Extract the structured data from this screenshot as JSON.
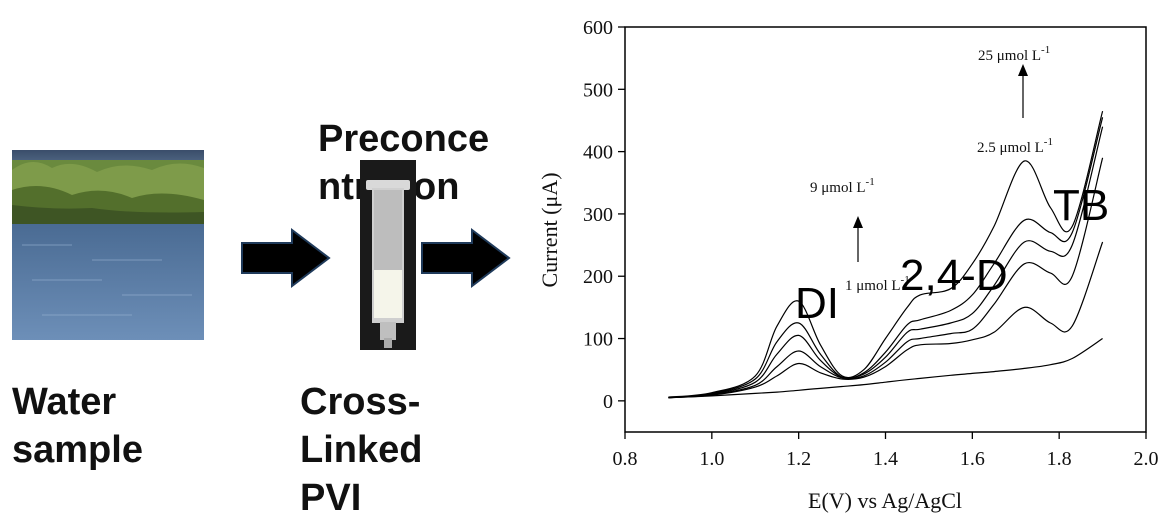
{
  "labels": {
    "water_sample": [
      "Water",
      "sample"
    ],
    "preconcentration": [
      "Preconce",
      "ntration"
    ],
    "cross_linked": [
      "Cross-",
      "Linked",
      "PVI"
    ]
  },
  "icons": {
    "photo": "water-landscape-photo",
    "cartridge": "spe-cartridge",
    "arrow": "right-arrow"
  },
  "colors": {
    "arrow_fill": "#000000",
    "arrow_border": "#1f3a5a",
    "curve": "#000000"
  },
  "chart_data": {
    "type": "line",
    "xlabel": "E(V) vs Ag/AgCl",
    "ylabel": "Current (μA)",
    "xlim": [
      0.8,
      2.0
    ],
    "ylim": [
      -50,
      600
    ],
    "xticks": [
      0.8,
      1.0,
      1.2,
      1.4,
      1.6,
      1.8,
      2.0
    ],
    "yticks": [
      0,
      100,
      200,
      300,
      400,
      500,
      600
    ],
    "x": [
      0.9,
      1.0,
      1.1,
      1.15,
      1.2,
      1.25,
      1.3,
      1.35,
      1.4,
      1.45,
      1.48,
      1.55,
      1.6,
      1.65,
      1.72,
      1.78,
      1.83,
      1.9
    ],
    "series": [
      {
        "values": [
          5,
          8,
          12,
          14,
          17,
          20,
          23,
          26,
          30,
          34,
          36,
          41,
          44,
          47,
          52,
          58,
          68,
          100
        ]
      },
      {
        "values": [
          5,
          9,
          22,
          40,
          60,
          45,
          35,
          38,
          55,
          82,
          90,
          92,
          98,
          110,
          150,
          125,
          120,
          255
        ]
      },
      {
        "values": [
          5,
          10,
          25,
          55,
          80,
          55,
          37,
          40,
          62,
          95,
          100,
          108,
          115,
          155,
          220,
          205,
          200,
          390
        ]
      },
      {
        "values": [
          5,
          11,
          30,
          75,
          105,
          65,
          38,
          43,
          70,
          110,
          115,
          125,
          140,
          185,
          255,
          240,
          250,
          440
        ]
      },
      {
        "values": [
          5,
          12,
          35,
          95,
          125,
          75,
          38,
          45,
          78,
          122,
          130,
          145,
          170,
          220,
          290,
          270,
          270,
          455
        ]
      },
      {
        "values": [
          6,
          13,
          40,
          120,
          160,
          90,
          40,
          50,
          100,
          150,
          170,
          180,
          220,
          280,
          385,
          310,
          280,
          465
        ]
      }
    ],
    "annotations": {
      "top_conc": "25 μmol L",
      "top_sup": "-1",
      "mid_conc": "2.5 μmol L",
      "mid_sup": "-1",
      "left_top_conc": "9 μmol L",
      "left_top_sup": "-1",
      "left_bottom_conc": "1 μmol L",
      "left_bottom_sup": "-1",
      "peak_1": "DI",
      "peak_2": "2,4-D",
      "peak_3": "TB"
    }
  }
}
